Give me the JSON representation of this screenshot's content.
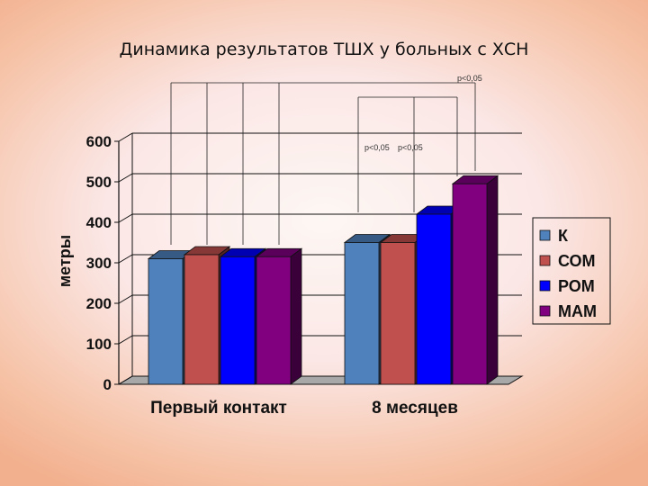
{
  "colors": {
    "series": [
      "#4f81bd",
      "#c0504d",
      "#0000ff",
      "#800080"
    ],
    "floor": "#a8a8a8",
    "frame": "#111111"
  },
  "chart_data": {
    "type": "bar",
    "title": "Динамика результатов ТШХ у больных с ХСН",
    "ylabel": "метры",
    "xlabel": "",
    "categories": [
      "Первый контакт",
      "8 месяцев"
    ],
    "series": [
      {
        "name": "К",
        "values": [
          310,
          350
        ]
      },
      {
        "name": "СОМ",
        "values": [
          320,
          350
        ]
      },
      {
        "name": "РОМ",
        "values": [
          315,
          420
        ]
      },
      {
        "name": "МАМ",
        "values": [
          315,
          495
        ]
      }
    ],
    "ylim": [
      0,
      600
    ],
    "yticks": [
      "0",
      "100",
      "200",
      "300",
      "400",
      "500",
      "600"
    ],
    "grid": true,
    "legend": "right",
    "annotations": [
      "p<0,05",
      "p<0,05",
      "p<0,05"
    ]
  }
}
